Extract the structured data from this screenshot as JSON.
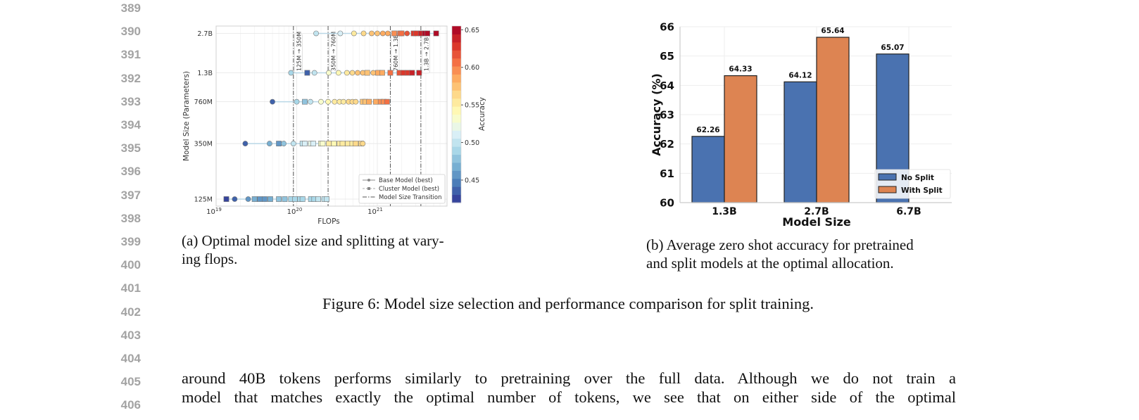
{
  "line_numbers": [
    "389",
    "390",
    "391",
    "392",
    "393",
    "394",
    "395",
    "396",
    "397",
    "398",
    "399",
    "400",
    "401",
    "402",
    "403",
    "404",
    "405",
    "406"
  ],
  "captions": {
    "a_line1": "(a) Optimal model size and splitting at vary-",
    "a_line2": "ing flops.",
    "b_line1": "(b) Average zero shot accuracy for pretrained",
    "b_line2": "and split models at the optimal allocation.",
    "figure": "Figure 6: Model size selection and performance comparison for split training."
  },
  "body_text": [
    "around 40B tokens performs similarly to pretraining over the full data. Although we do not train a",
    "model that matches exactly the optimal number of tokens, we see that on either side of the optimal"
  ],
  "chart_data": [
    {
      "type": "scatter",
      "xlabel": "FLOPs",
      "ylabel": "Model Size (Parameters)",
      "xscale": "log",
      "yscale": "log",
      "xlim": [
        1e+19,
        7.4e+21
      ],
      "x_ticks": [
        {
          "value": 1e+19,
          "base": "10",
          "exp": "19"
        },
        {
          "value": 1e+20,
          "base": "10",
          "exp": "20"
        },
        {
          "value": 1e+21,
          "base": "10",
          "exp": "21"
        }
      ],
      "y_ticks": [
        {
          "value": 125000000.0,
          "label": "125M"
        },
        {
          "value": 350000000.0,
          "label": "350M"
        },
        {
          "value": 760000000.0,
          "label": "760M"
        },
        {
          "value": 1300000000.0,
          "label": "1.3B"
        },
        {
          "value": 2700000000.0,
          "label": "2.7B"
        }
      ],
      "grid": true,
      "colorbar": {
        "label": "Accuracy",
        "range": [
          0.42,
          0.655
        ],
        "ticks": [
          "0.45",
          "0.50",
          "0.55",
          "0.60",
          "0.65"
        ],
        "colormap": "RdYlBu_r"
      },
      "transitions": [
        {
          "flops": 9.1e+19,
          "label": "125M → 350M"
        },
        {
          "flops": 2.45e+20,
          "label": "350M → 760M"
        },
        {
          "flops": 1.45e+21,
          "label": "760M → 1.3B"
        },
        {
          "flops": 3.47e+21,
          "label": "1.3B → 2.7B"
        }
      ],
      "legend": {
        "placement": "bottom-right",
        "entries": [
          "Base Model (best)",
          "Cluster Model (best)",
          "Model Size Transition"
        ]
      },
      "series": [
        {
          "model_size": 2700000000.0,
          "points": [
            [
              1.74e+20,
              0.5,
              "base"
            ],
            [
              3.47e+20,
              0.51,
              "base"
            ],
            [
              5.13e+20,
              0.55,
              "base"
            ],
            [
              6.76e+20,
              0.56,
              "base"
            ],
            [
              8.51e+20,
              0.57,
              "base"
            ],
            [
              1e+21,
              0.58,
              "base"
            ],
            [
              1.17e+21,
              0.59,
              "base"
            ],
            [
              1.35e+21,
              0.59,
              "base"
            ],
            [
              1.62e+21,
              0.6,
              "cluster"
            ],
            [
              1.91e+21,
              0.61,
              "cluster"
            ],
            [
              2e+21,
              0.61,
              "cluster"
            ],
            [
              2.34e+21,
              0.62,
              "base"
            ],
            [
              2.82e+21,
              0.63,
              "cluster"
            ],
            [
              3.02e+21,
              0.63,
              "cluster"
            ],
            [
              3.47e+21,
              0.64,
              "cluster"
            ],
            [
              3.89e+21,
              0.65,
              "cluster"
            ],
            [
              4.17e+21,
              0.65,
              "cluster"
            ],
            [
              5.37e+21,
              0.65,
              "cluster"
            ]
          ]
        },
        {
          "model_size": 1300000000.0,
          "points": [
            [
              8.5e+19,
              0.49,
              "base"
            ],
            [
              1.35e+20,
              0.44,
              "cluster"
            ],
            [
              1.66e+20,
              0.5,
              "base"
            ],
            [
              2.5e+20,
              0.53,
              "base"
            ],
            [
              3.3e+20,
              0.54,
              "base"
            ],
            [
              4.2e+20,
              0.55,
              "base"
            ],
            [
              4.9e+20,
              0.56,
              "base"
            ],
            [
              5.7e+20,
              0.57,
              "base"
            ],
            [
              6.6e+20,
              0.58,
              "base"
            ],
            [
              7.5e+20,
              0.58,
              "cluster"
            ],
            [
              8.9e+20,
              0.58,
              "base"
            ],
            [
              1.02e+21,
              0.59,
              "cluster"
            ],
            [
              1.15e+21,
              0.59,
              "cluster"
            ],
            [
              1.45e+21,
              0.61,
              "cluster"
            ],
            [
              1.88e+21,
              0.62,
              "cluster"
            ],
            [
              2.1e+21,
              0.63,
              "cluster"
            ],
            [
              2.4e+21,
              0.63,
              "cluster"
            ],
            [
              2.7e+21,
              0.64,
              "cluster"
            ],
            [
              3.3e+21,
              0.64,
              "cluster"
            ]
          ]
        },
        {
          "model_size": 760000000.0,
          "points": [
            [
              5e+19,
              0.44,
              "base"
            ],
            [
              1e+20,
              0.49,
              "base"
            ],
            [
              1.26e+20,
              0.48,
              "cluster"
            ],
            [
              1.48e+20,
              0.5,
              "base"
            ],
            [
              2e+20,
              0.53,
              "base"
            ],
            [
              2.45e+20,
              0.54,
              "base"
            ],
            [
              2.95e+20,
              0.55,
              "base"
            ],
            [
              3.4e+20,
              0.55,
              "base"
            ],
            [
              3.8e+20,
              0.55,
              "base"
            ],
            [
              4.4e+20,
              0.56,
              "base"
            ],
            [
              4.9e+20,
              0.56,
              "base"
            ],
            [
              5.4e+20,
              0.56,
              "base"
            ],
            [
              6.6e+20,
              0.58,
              "cluster"
            ],
            [
              7.1e+20,
              0.58,
              "cluster"
            ],
            [
              7.9e+20,
              0.59,
              "cluster"
            ],
            [
              9.6e+20,
              0.59,
              "cluster"
            ],
            [
              1.1e+21,
              0.6,
              "cluster"
            ],
            [
              1.2e+21,
              0.6,
              "cluster"
            ],
            [
              1.32e+21,
              0.61,
              "cluster"
            ]
          ]
        },
        {
          "model_size": 350000000.0,
          "points": [
            [
              2.3e+19,
              0.44,
              "base"
            ],
            [
              4.6e+19,
              0.47,
              "base"
            ],
            [
              6e+19,
              0.46,
              "cluster"
            ],
            [
              6.9e+19,
              0.48,
              "base"
            ],
            [
              9.1e+19,
              0.5,
              "base"
            ],
            [
              1.18e+20,
              0.505,
              "cluster"
            ],
            [
              1.26e+20,
              0.51,
              "cluster"
            ],
            [
              1.5e+20,
              0.52,
              "cluster"
            ],
            [
              1.6e+20,
              0.51,
              "cluster"
            ],
            [
              2e+20,
              0.53,
              "cluster"
            ],
            [
              2.1e+20,
              0.53,
              "cluster"
            ],
            [
              2.5e+20,
              0.55,
              "cluster"
            ],
            [
              2.9e+20,
              0.54,
              "cluster"
            ],
            [
              3.4e+20,
              0.55,
              "cluster"
            ],
            [
              3.7e+20,
              0.55,
              "cluster"
            ],
            [
              4.3e+20,
              0.55,
              "cluster"
            ],
            [
              4.9e+20,
              0.55,
              "cluster"
            ],
            [
              5.4e+20,
              0.56,
              "cluster"
            ],
            [
              6.3e+20,
              0.56,
              "cluster"
            ],
            [
              6.6e+20,
              0.56,
              "base"
            ]
          ]
        },
        {
          "model_size": 125000000.0,
          "points": [
            [
              1.34e+19,
              0.42,
              "cluster"
            ],
            [
              1.7e+19,
              0.44,
              "base"
            ],
            [
              2.5e+19,
              0.46,
              "base"
            ],
            [
              3e+19,
              0.47,
              "cluster"
            ],
            [
              3.5e+19,
              0.46,
              "cluster"
            ],
            [
              4e+19,
              0.46,
              "cluster"
            ],
            [
              4.7e+19,
              0.47,
              "cluster"
            ],
            [
              6e+19,
              0.48,
              "cluster"
            ],
            [
              7.1e+19,
              0.48,
              "cluster"
            ],
            [
              8.5e+19,
              0.49,
              "cluster"
            ],
            [
              9.5e+19,
              0.49,
              "cluster"
            ],
            [
              1.1e+20,
              0.49,
              "cluster"
            ],
            [
              1.18e+20,
              0.49,
              "cluster"
            ],
            [
              1.5e+20,
              0.49,
              "cluster"
            ],
            [
              1.65e+20,
              0.49,
              "cluster"
            ],
            [
              1.85e+20,
              0.5,
              "cluster"
            ],
            [
              2.2e+20,
              0.5,
              "cluster"
            ],
            [
              2.35e+20,
              0.5,
              "cluster"
            ]
          ]
        }
      ]
    },
    {
      "type": "bar",
      "xlabel": "Model Size",
      "ylabel": "Accuracy (%)",
      "ylim": [
        60,
        66
      ],
      "y_ticks": [
        "60",
        "61",
        "62",
        "63",
        "64",
        "65",
        "66"
      ],
      "categories": [
        "1.3B",
        "2.7B",
        "6.7B"
      ],
      "grid": true,
      "legend_placement": "bottom-right",
      "series": [
        {
          "name": "No Split",
          "color": "#4a72b0",
          "values": [
            62.26,
            64.12,
            65.07
          ],
          "labels": [
            "62.26",
            "64.12",
            "65.07"
          ]
        },
        {
          "name": "With Split",
          "color": "#dd8452",
          "values": [
            64.33,
            65.64,
            null
          ],
          "labels": [
            "64.33",
            "65.64",
            ""
          ]
        }
      ]
    }
  ]
}
